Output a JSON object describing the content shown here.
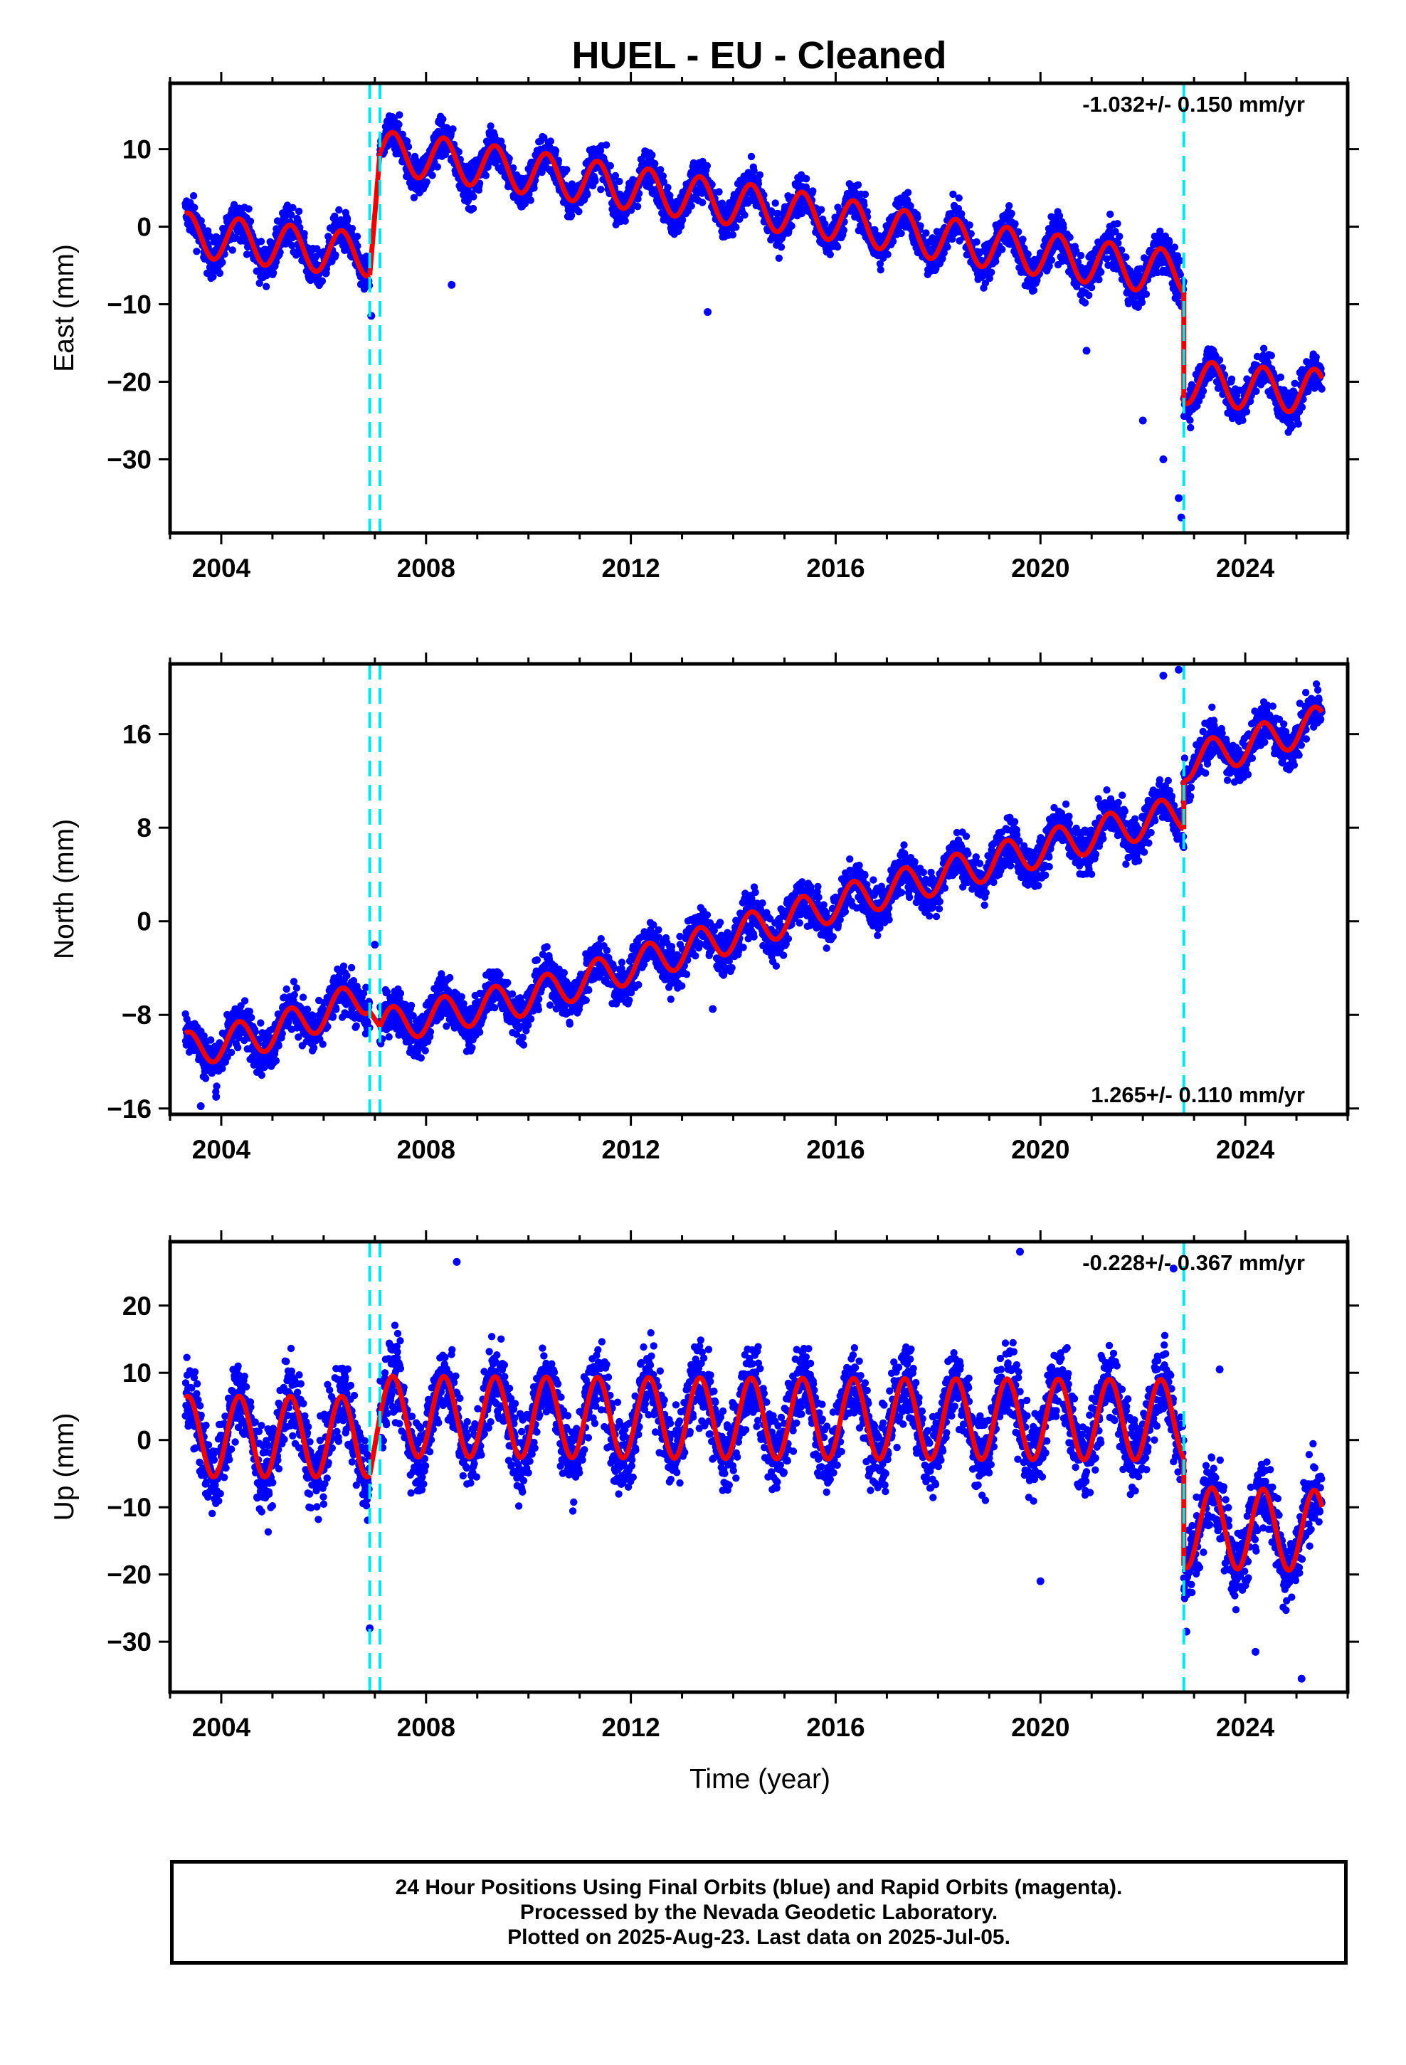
{
  "title": "HUEL  - EU - Cleaned",
  "xlabel": "Time (year)",
  "footer": {
    "line1": "24 Hour Positions Using Final Orbits (blue) and Rapid Orbits (magenta).",
    "line2": "Processed by the Nevada Geodetic Laboratory.",
    "line3": "Plotted on 2025-Aug-23. Last data on 2025-Jul-05."
  },
  "colors": {
    "data": "#0000ff",
    "fit": "#ee0000",
    "breaks": "#00e5ee"
  },
  "chart_data": [
    {
      "type": "scatter",
      "component": "east",
      "ylabel": "East (mm)",
      "rate_label": "-1.032+/- 0.150 mm/yr",
      "rate_position": "top-right",
      "xlim": [
        2003.0,
        2026.0
      ],
      "ylim": [
        -39.5,
        18.5
      ],
      "xticks": [
        2004,
        2008,
        2012,
        2016,
        2020,
        2024
      ],
      "xtick_labels": [
        "2004",
        "2008",
        "2012",
        "2016",
        "2020",
        "2024"
      ],
      "yticks": [
        10,
        0,
        -10,
        -20,
        -30
      ],
      "ytick_labels": [
        "10",
        "0",
        "−10",
        "−20",
        "−30"
      ],
      "breaks": [
        2006.9,
        2007.1,
        2022.8
      ],
      "data_start": 2003.3,
      "data_end": 2025.5,
      "segments": [
        {
          "x": [
            2003.3,
            2004.0,
            2005.0,
            2006.0,
            2006.9
          ],
          "y": [
            -1.0,
            -1.5,
            -2.3,
            -3.1,
            -3.6
          ]
        },
        {
          "x": [
            2007.1,
            2008.0,
            2010.0,
            2012.0,
            2014.0,
            2016.0,
            2018.0,
            2020.0,
            2022.0,
            2022.8
          ],
          "y": [
            9.5,
            9.0,
            7.0,
            5.0,
            3.0,
            1.0,
            -1.5,
            -3.5,
            -5.5,
            -5.8
          ]
        },
        {
          "x": [
            2022.8,
            2023.5,
            2024.5,
            2025.5
          ],
          "y": [
            -20.0,
            -20.4,
            -21.0,
            -21.2
          ]
        }
      ],
      "seasonal_amplitude": 2.8,
      "scatter": 2.0,
      "outliers": [
        {
          "x": 2006.93,
          "y": -11.5
        },
        {
          "x": 2008.5,
          "y": -7.5
        },
        {
          "x": 2013.5,
          "y": -11.0
        },
        {
          "x": 2020.9,
          "y": -16.0
        },
        {
          "x": 2022.0,
          "y": -25.0
        },
        {
          "x": 2022.4,
          "y": -30.0
        },
        {
          "x": 2022.75,
          "y": -37.5
        },
        {
          "x": 2022.7,
          "y": -35.0
        }
      ]
    },
    {
      "type": "scatter",
      "component": "north",
      "ylabel": "North (mm)",
      "rate_label": "1.265+/- 0.110 mm/yr",
      "rate_position": "bottom-right",
      "xlim": [
        2003.0,
        2026.0
      ],
      "ylim": [
        -16.5,
        22.0
      ],
      "xticks": [
        2004,
        2008,
        2012,
        2016,
        2020,
        2024
      ],
      "xtick_labels": [
        "2004",
        "2008",
        "2012",
        "2016",
        "2020",
        "2024"
      ],
      "yticks": [
        16,
        8,
        0,
        -8,
        -16
      ],
      "ytick_labels": [
        "16",
        "8",
        "0",
        "−8",
        "−16"
      ],
      "breaks": [
        2006.9,
        2007.1,
        2022.8
      ],
      "data_start": 2003.3,
      "data_end": 2025.5,
      "segments": [
        {
          "x": [
            2003.3,
            2005.0,
            2006.9
          ],
          "y": [
            -11.0,
            -9.5,
            -6.3
          ]
        },
        {
          "x": [
            2007.1,
            2010.0,
            2013.0,
            2016.0,
            2019.0,
            2022.0,
            2022.8
          ],
          "y": [
            -9.0,
            -6.5,
            -2.5,
            1.5,
            5.0,
            8.5,
            9.3
          ]
        },
        {
          "x": [
            2022.8,
            2024.0,
            2025.5
          ],
          "y": [
            13.5,
            15.0,
            17.0
          ]
        }
      ],
      "seasonal_amplitude": 1.5,
      "scatter": 1.5,
      "outliers": [
        {
          "x": 2003.6,
          "y": -15.8
        },
        {
          "x": 2003.9,
          "y": -15.0
        },
        {
          "x": 2007.0,
          "y": -2.0
        },
        {
          "x": 2013.6,
          "y": -7.5
        },
        {
          "x": 2021.3,
          "y": 9.5
        },
        {
          "x": 2022.4,
          "y": 21.0
        },
        {
          "x": 2022.7,
          "y": 21.5
        }
      ]
    },
    {
      "type": "scatter",
      "component": "up",
      "ylabel": "Up (mm)",
      "rate_label": "-0.228+/- 0.367 mm/yr",
      "rate_position": "top-right",
      "xlim": [
        2003.0,
        2026.0
      ],
      "ylim": [
        -37.5,
        29.5
      ],
      "xticks": [
        2004,
        2008,
        2012,
        2016,
        2020,
        2024
      ],
      "xtick_labels": [
        "2004",
        "2008",
        "2012",
        "2016",
        "2020",
        "2024"
      ],
      "yticks": [
        20,
        10,
        0,
        -10,
        -20,
        -30
      ],
      "ytick_labels": [
        "20",
        "10",
        "0",
        "−10",
        "−20",
        "−30"
      ],
      "breaks": [
        2006.9,
        2007.1,
        2022.8
      ],
      "data_start": 2003.3,
      "data_end": 2025.5,
      "segments": [
        {
          "x": [
            2003.3,
            2006.9
          ],
          "y": [
            0.5,
            0.5
          ]
        },
        {
          "x": [
            2007.1,
            2015.0,
            2022.8
          ],
          "y": [
            3.5,
            3.2,
            3.0
          ]
        },
        {
          "x": [
            2022.8,
            2025.5
          ],
          "y": [
            -13.0,
            -13.5
          ]
        }
      ],
      "seasonal_amplitude": 6.0,
      "scatter": 4.5,
      "outliers": [
        {
          "x": 2006.9,
          "y": -28.0
        },
        {
          "x": 2008.6,
          "y": 26.5
        },
        {
          "x": 2019.6,
          "y": 28.0
        },
        {
          "x": 2020.0,
          "y": -21.0
        },
        {
          "x": 2022.6,
          "y": 25.5
        },
        {
          "x": 2022.85,
          "y": -28.5
        },
        {
          "x": 2023.5,
          "y": 10.5
        },
        {
          "x": 2025.1,
          "y": -35.5
        },
        {
          "x": 2024.2,
          "y": -31.5
        }
      ]
    }
  ]
}
